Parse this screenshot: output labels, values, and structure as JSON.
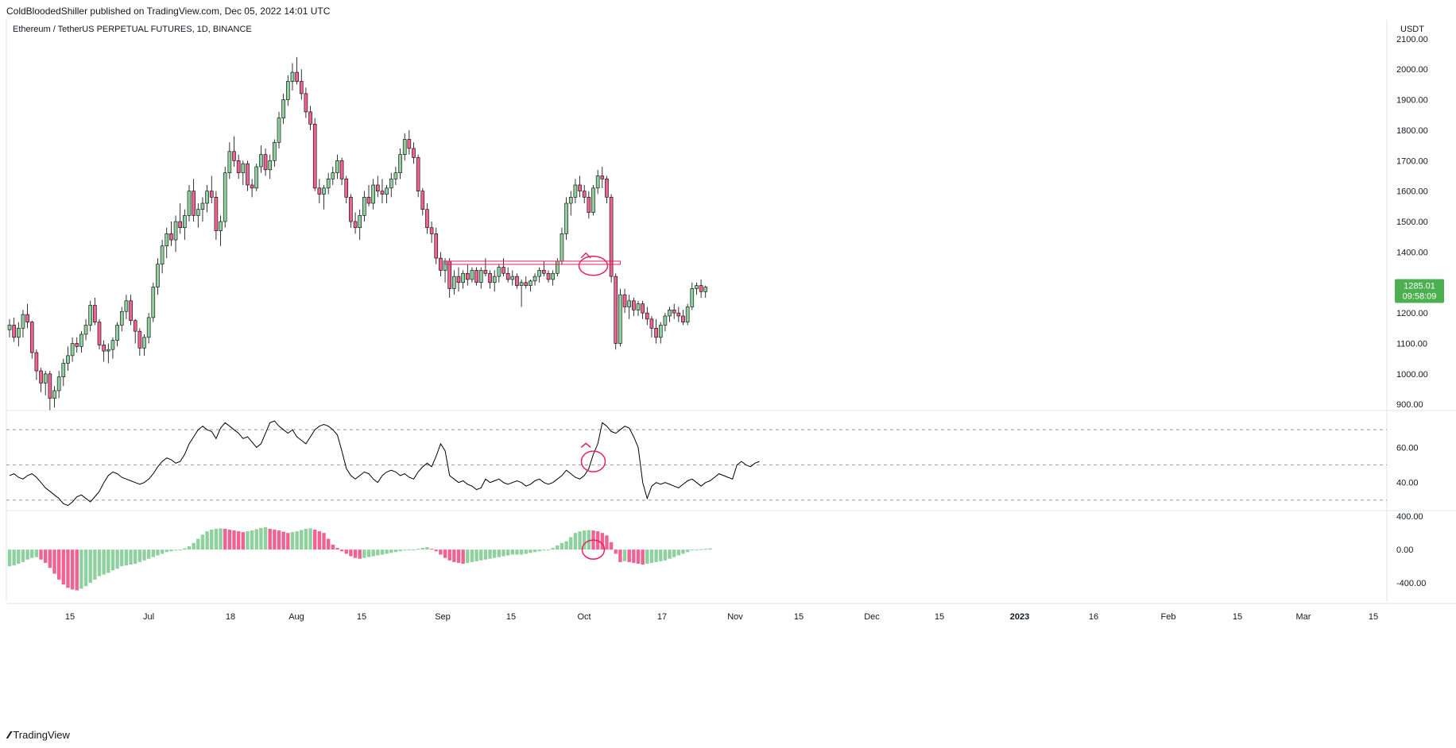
{
  "header": {
    "published": "ColdBloodedShiller published on TradingView.com, Dec 05, 2022 14:01 UTC",
    "symbol": "Ethereum / TetherUS PERPETUAL FUTURES, 1D, BINANCE",
    "currency": "USDT"
  },
  "price_tag": {
    "value": "1285.01",
    "countdown": "09:58:09"
  },
  "footer": {
    "brand": "TradingView"
  },
  "colors": {
    "up": "#26a69a",
    "up_fill": "#8fd19e",
    "down": "#e91e63",
    "down_fill": "#f06292",
    "macd_up": "#8fd19e",
    "macd_down": "#f06292",
    "grid": "#e0e3eb",
    "annotation": "#e91e63",
    "price_tag": "#4caf50"
  },
  "chart_data": [
    {
      "type": "candlestick",
      "title": "Ethereum / TetherUS PERPETUAL FUTURES, 1D, BINANCE",
      "x_tick_labels": [
        "15",
        "Jul",
        "18",
        "Aug",
        "15",
        "Sep",
        "15",
        "Oct",
        "17",
        "Nov",
        "15",
        "Dec",
        "15",
        "2023",
        "16",
        "Feb",
        "15",
        "Mar",
        "15"
      ],
      "y_tick_labels": [
        "2100.00",
        "2000.00",
        "1900.00",
        "1800.00",
        "1700.00",
        "1600.00",
        "1500.00",
        "1400.00",
        "1300.00",
        "1200.00",
        "1100.00",
        "1000.00",
        "900.00"
      ],
      "y_unit": "USDT",
      "ylim": [
        885,
        2110
      ],
      "last_price": 1285.01,
      "ohlc": [
        [
          1145,
          1180,
          1120,
          1160
        ],
        [
          1160,
          1185,
          1105,
          1120
        ],
        [
          1120,
          1170,
          1090,
          1150
        ],
        [
          1150,
          1210,
          1120,
          1195
        ],
        [
          1195,
          1230,
          1150,
          1170
        ],
        [
          1170,
          1175,
          1050,
          1070
        ],
        [
          1070,
          1080,
          980,
          1010
        ],
        [
          1010,
          1020,
          940,
          970
        ],
        [
          970,
          1010,
          930,
          1000
        ],
        [
          1000,
          1010,
          880,
          920
        ],
        [
          920,
          960,
          890,
          945
        ],
        [
          945,
          1010,
          920,
          990
        ],
        [
          990,
          1050,
          960,
          1035
        ],
        [
          1035,
          1090,
          1010,
          1060
        ],
        [
          1060,
          1120,
          1040,
          1100
        ],
        [
          1100,
          1120,
          1070,
          1090
        ],
        [
          1090,
          1140,
          1070,
          1130
        ],
        [
          1130,
          1180,
          1110,
          1160
        ],
        [
          1160,
          1240,
          1140,
          1225
        ],
        [
          1225,
          1250,
          1160,
          1170
        ],
        [
          1170,
          1180,
          1080,
          1095
        ],
        [
          1095,
          1110,
          1040,
          1075
        ],
        [
          1075,
          1100,
          1035,
          1080
        ],
        [
          1080,
          1120,
          1050,
          1110
        ],
        [
          1110,
          1170,
          1090,
          1160
        ],
        [
          1160,
          1220,
          1140,
          1205
        ],
        [
          1205,
          1260,
          1180,
          1240
        ],
        [
          1240,
          1260,
          1160,
          1175
        ],
        [
          1175,
          1180,
          1100,
          1140
        ],
        [
          1140,
          1150,
          1060,
          1085
        ],
        [
          1085,
          1130,
          1060,
          1120
        ],
        [
          1120,
          1200,
          1100,
          1185
        ],
        [
          1185,
          1300,
          1170,
          1285
        ],
        [
          1285,
          1380,
          1260,
          1360
        ],
        [
          1360,
          1440,
          1330,
          1420
        ],
        [
          1420,
          1480,
          1380,
          1460
        ],
        [
          1460,
          1500,
          1420,
          1440
        ],
        [
          1440,
          1520,
          1400,
          1500
        ],
        [
          1500,
          1560,
          1460,
          1480
        ],
        [
          1480,
          1540,
          1440,
          1520
        ],
        [
          1520,
          1620,
          1500,
          1600
        ],
        [
          1600,
          1640,
          1500,
          1520
        ],
        [
          1520,
          1560,
          1480,
          1540
        ],
        [
          1540,
          1580,
          1500,
          1560
        ],
        [
          1560,
          1620,
          1530,
          1600
        ],
        [
          1600,
          1650,
          1560,
          1580
        ],
        [
          1580,
          1600,
          1440,
          1470
        ],
        [
          1470,
          1520,
          1420,
          1500
        ],
        [
          1500,
          1680,
          1480,
          1660
        ],
        [
          1660,
          1760,
          1640,
          1730
        ],
        [
          1730,
          1780,
          1680,
          1700
        ],
        [
          1700,
          1720,
          1640,
          1660
        ],
        [
          1660,
          1700,
          1620,
          1690
        ],
        [
          1690,
          1700,
          1600,
          1620
        ],
        [
          1620,
          1640,
          1580,
          1610
        ],
        [
          1610,
          1690,
          1600,
          1680
        ],
        [
          1680,
          1750,
          1660,
          1720
        ],
        [
          1720,
          1740,
          1650,
          1670
        ],
        [
          1670,
          1720,
          1640,
          1700
        ],
        [
          1700,
          1770,
          1680,
          1760
        ],
        [
          1760,
          1860,
          1740,
          1840
        ],
        [
          1840,
          1920,
          1820,
          1900
        ],
        [
          1900,
          1980,
          1880,
          1960
        ],
        [
          1960,
          2020,
          1930,
          1990
        ],
        [
          1990,
          2040,
          1950,
          1960
        ],
        [
          1960,
          2000,
          1900,
          1920
        ],
        [
          1920,
          1940,
          1840,
          1860
        ],
        [
          1860,
          1880,
          1800,
          1820
        ],
        [
          1820,
          1840,
          1600,
          1610
        ],
        [
          1610,
          1640,
          1560,
          1590
        ],
        [
          1590,
          1620,
          1540,
          1610
        ],
        [
          1610,
          1660,
          1590,
          1640
        ],
        [
          1640,
          1680,
          1620,
          1660
        ],
        [
          1660,
          1720,
          1640,
          1700
        ],
        [
          1700,
          1710,
          1620,
          1640
        ],
        [
          1640,
          1650,
          1560,
          1580
        ],
        [
          1580,
          1590,
          1480,
          1500
        ],
        [
          1500,
          1530,
          1460,
          1480
        ],
        [
          1480,
          1540,
          1440,
          1520
        ],
        [
          1520,
          1600,
          1500,
          1580
        ],
        [
          1580,
          1620,
          1550,
          1560
        ],
        [
          1560,
          1640,
          1540,
          1620
        ],
        [
          1620,
          1650,
          1580,
          1600
        ],
        [
          1600,
          1640,
          1560,
          1590
        ],
        [
          1590,
          1620,
          1560,
          1610
        ],
        [
          1610,
          1660,
          1580,
          1640
        ],
        [
          1640,
          1680,
          1620,
          1660
        ],
        [
          1660,
          1740,
          1640,
          1720
        ],
        [
          1720,
          1790,
          1700,
          1770
        ],
        [
          1770,
          1800,
          1720,
          1740
        ],
        [
          1740,
          1760,
          1690,
          1710
        ],
        [
          1710,
          1720,
          1580,
          1600
        ],
        [
          1600,
          1610,
          1520,
          1540
        ],
        [
          1540,
          1560,
          1460,
          1480
        ],
        [
          1480,
          1500,
          1430,
          1460
        ],
        [
          1460,
          1480,
          1360,
          1380
        ],
        [
          1380,
          1400,
          1320,
          1340
        ],
        [
          1340,
          1380,
          1300,
          1370
        ],
        [
          1370,
          1380,
          1250,
          1280
        ],
        [
          1280,
          1340,
          1260,
          1320
        ],
        [
          1320,
          1350,
          1270,
          1300
        ],
        [
          1300,
          1340,
          1280,
          1330
        ],
        [
          1330,
          1360,
          1290,
          1310
        ],
        [
          1310,
          1350,
          1300,
          1340
        ],
        [
          1340,
          1350,
          1290,
          1300
        ],
        [
          1300,
          1350,
          1280,
          1340
        ],
        [
          1340,
          1380,
          1320,
          1330
        ],
        [
          1330,
          1340,
          1280,
          1300
        ],
        [
          1300,
          1340,
          1270,
          1320
        ],
        [
          1320,
          1360,
          1300,
          1350
        ],
        [
          1350,
          1380,
          1320,
          1330
        ],
        [
          1330,
          1350,
          1300,
          1310
        ],
        [
          1310,
          1340,
          1290,
          1320
        ],
        [
          1320,
          1330,
          1280,
          1290
        ],
        [
          1290,
          1310,
          1220,
          1300
        ],
        [
          1300,
          1320,
          1280,
          1290
        ],
        [
          1290,
          1310,
          1270,
          1305
        ],
        [
          1305,
          1330,
          1290,
          1320
        ],
        [
          1320,
          1350,
          1300,
          1340
        ],
        [
          1340,
          1370,
          1320,
          1330
        ],
        [
          1330,
          1340,
          1300,
          1310
        ],
        [
          1310,
          1340,
          1290,
          1330
        ],
        [
          1330,
          1380,
          1320,
          1370
        ],
        [
          1370,
          1480,
          1360,
          1460
        ],
        [
          1460,
          1580,
          1440,
          1560
        ],
        [
          1560,
          1600,
          1520,
          1580
        ],
        [
          1580,
          1640,
          1560,
          1620
        ],
        [
          1620,
          1650,
          1580,
          1600
        ],
        [
          1600,
          1620,
          1560,
          1580
        ],
        [
          1580,
          1600,
          1510,
          1530
        ],
        [
          1530,
          1620,
          1520,
          1610
        ],
        [
          1610,
          1670,
          1590,
          1650
        ],
        [
          1650,
          1680,
          1610,
          1640
        ],
        [
          1640,
          1650,
          1560,
          1580
        ],
        [
          1580,
          1590,
          1300,
          1320
        ],
        [
          1320,
          1330,
          1080,
          1100
        ],
        [
          1100,
          1280,
          1090,
          1260
        ],
        [
          1260,
          1280,
          1200,
          1220
        ],
        [
          1220,
          1260,
          1180,
          1240
        ],
        [
          1240,
          1250,
          1190,
          1210
        ],
        [
          1210,
          1240,
          1190,
          1230
        ],
        [
          1230,
          1240,
          1180,
          1200
        ],
        [
          1200,
          1220,
          1160,
          1180
        ],
        [
          1180,
          1190,
          1120,
          1150
        ],
        [
          1150,
          1180,
          1100,
          1120
        ],
        [
          1120,
          1170,
          1100,
          1160
        ],
        [
          1160,
          1200,
          1140,
          1190
        ],
        [
          1190,
          1220,
          1170,
          1210
        ],
        [
          1210,
          1230,
          1180,
          1200
        ],
        [
          1200,
          1220,
          1170,
          1190
        ],
        [
          1190,
          1210,
          1160,
          1170
        ],
        [
          1170,
          1230,
          1160,
          1220
        ],
        [
          1220,
          1300,
          1210,
          1280
        ],
        [
          1280,
          1300,
          1260,
          1290
        ],
        [
          1290,
          1310,
          1250,
          1270
        ],
        [
          1270,
          1290,
          1250,
          1285.01
        ]
      ],
      "annotation": {
        "type": "horizontal-zone",
        "from": 1360,
        "to": 1370,
        "note": "breakout circle"
      }
    },
    {
      "type": "line",
      "title": "",
      "y_tick_labels": [
        "60.00",
        "40.00"
      ],
      "ylim": [
        25,
        80
      ],
      "bands": [
        30,
        50,
        70
      ],
      "values": [
        44,
        45,
        43,
        42,
        44,
        45,
        43,
        40,
        37,
        35,
        33,
        31,
        28,
        27,
        29,
        32,
        33,
        31,
        29,
        32,
        35,
        40,
        44,
        46,
        45,
        43,
        42,
        41,
        40,
        39,
        40,
        42,
        45,
        49,
        52,
        54,
        53,
        51,
        52,
        56,
        62,
        66,
        70,
        72,
        70,
        69,
        65,
        71,
        74,
        72,
        70,
        68,
        65,
        66,
        63,
        60,
        62,
        68,
        74,
        75,
        72,
        70,
        68,
        70,
        66,
        64,
        62,
        66,
        70,
        72,
        73,
        72,
        70,
        67,
        58,
        48,
        44,
        42,
        44,
        46,
        45,
        42,
        40,
        44,
        46,
        47,
        46,
        44,
        45,
        43,
        42,
        46,
        49,
        51,
        49,
        55,
        62,
        58,
        44,
        42,
        40,
        41,
        39,
        38,
        36,
        37,
        42,
        40,
        41,
        42,
        40,
        39,
        40,
        41,
        40,
        38,
        39,
        41,
        42,
        40,
        39,
        40,
        42,
        44,
        47,
        45,
        43,
        42,
        44,
        48,
        56,
        62,
        74,
        72,
        69,
        68,
        70,
        72,
        71,
        66,
        60,
        40,
        31,
        38,
        40,
        39,
        40,
        39,
        38,
        37,
        39,
        41,
        42,
        40,
        38,
        40,
        41,
        43,
        45,
        44,
        43,
        42,
        50,
        52,
        50,
        49,
        51,
        52
      ]
    },
    {
      "type": "bar",
      "title": "",
      "y_tick_labels": [
        "400.00",
        "0.00",
        "-400.00"
      ],
      "ylim": [
        -600,
        450
      ],
      "values": [
        -200,
        -190,
        -170,
        -150,
        -120,
        -100,
        -90,
        -120,
        -160,
        -220,
        -290,
        -360,
        -420,
        -460,
        -480,
        -490,
        -470,
        -440,
        -400,
        -360,
        -320,
        -300,
        -280,
        -250,
        -230,
        -200,
        -190,
        -180,
        -170,
        -150,
        -130,
        -110,
        -90,
        -70,
        -50,
        -30,
        -20,
        -10,
        0,
        15,
        40,
        80,
        130,
        180,
        220,
        240,
        250,
        255,
        250,
        240,
        230,
        220,
        210,
        220,
        230,
        245,
        260,
        270,
        250,
        240,
        230,
        215,
        200,
        210,
        220,
        235,
        250,
        255,
        240,
        220,
        200,
        130,
        60,
        20,
        -20,
        -50,
        -80,
        -100,
        -110,
        -100,
        -90,
        -80,
        -70,
        -60,
        -50,
        -40,
        -30,
        -20,
        -10,
        -5,
        0,
        10,
        20,
        30,
        10,
        -20,
        -60,
        -100,
        -130,
        -150,
        -160,
        -170,
        -160,
        -150,
        -140,
        -130,
        -120,
        -110,
        -100,
        -90,
        -80,
        -70,
        -60,
        -60,
        -60,
        -50,
        -40,
        -30,
        -20,
        -10,
        0,
        20,
        50,
        80,
        100,
        150,
        200,
        220,
        230,
        235,
        230,
        220,
        200,
        170,
        90,
        -50,
        -150,
        -140,
        -150,
        -160,
        -170,
        -180,
        -170,
        -160,
        -150,
        -140,
        -130,
        -110,
        -90,
        -70,
        -50,
        -30,
        -10,
        0,
        5,
        10,
        15
      ]
    }
  ]
}
